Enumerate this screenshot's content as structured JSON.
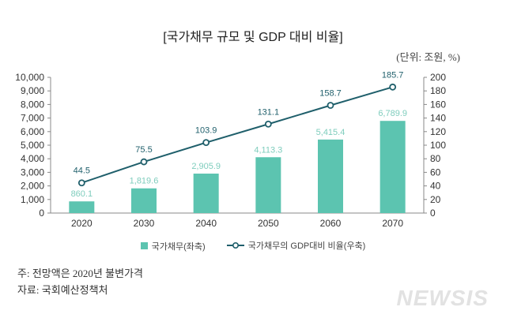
{
  "chart_data": {
    "type": "bar+line",
    "title": "[국가채무 규모 및 GDP 대비 비율]",
    "unit_label": "(단위: 조원, %)",
    "categories": [
      "2020",
      "2030",
      "2040",
      "2050",
      "2060",
      "2070"
    ],
    "series": [
      {
        "name": "국가채무(좌축)",
        "type": "bar",
        "axis": "left",
        "values": [
          860.1,
          1819.6,
          2905.9,
          4113.3,
          5415.4,
          6789.9
        ],
        "labels": [
          "860.1",
          "1,819.6",
          "2,905.9",
          "4,113.3",
          "5,415.4",
          "6,789.9"
        ],
        "color": "#5cc4b0"
      },
      {
        "name": "국가채무의 GDP대비 비율(우축)",
        "type": "line",
        "axis": "right",
        "values": [
          44.5,
          75.5,
          103.9,
          131.1,
          158.7,
          185.7
        ],
        "labels": [
          "44.5",
          "75.5",
          "103.9",
          "131.1",
          "158.7",
          "185.7"
        ],
        "color": "#1f5f6b"
      }
    ],
    "left_axis": {
      "range": [
        0,
        10000
      ],
      "ticks": [
        "0",
        "1,000",
        "2,000",
        "3,000",
        "4,000",
        "5,000",
        "6,000",
        "7,000",
        "8,000",
        "9,000",
        "10,000"
      ]
    },
    "right_axis": {
      "range": [
        0,
        200
      ],
      "ticks": [
        "0",
        "20",
        "40",
        "60",
        "80",
        "100",
        "120",
        "140",
        "160",
        "180",
        "200"
      ]
    },
    "grid": false,
    "legend_position": "bottom"
  },
  "notes": {
    "note1": "주: 전망액은 2020년 불변가격",
    "note2": "자료: 국회예산정책처"
  },
  "logo": "NEWSIS"
}
